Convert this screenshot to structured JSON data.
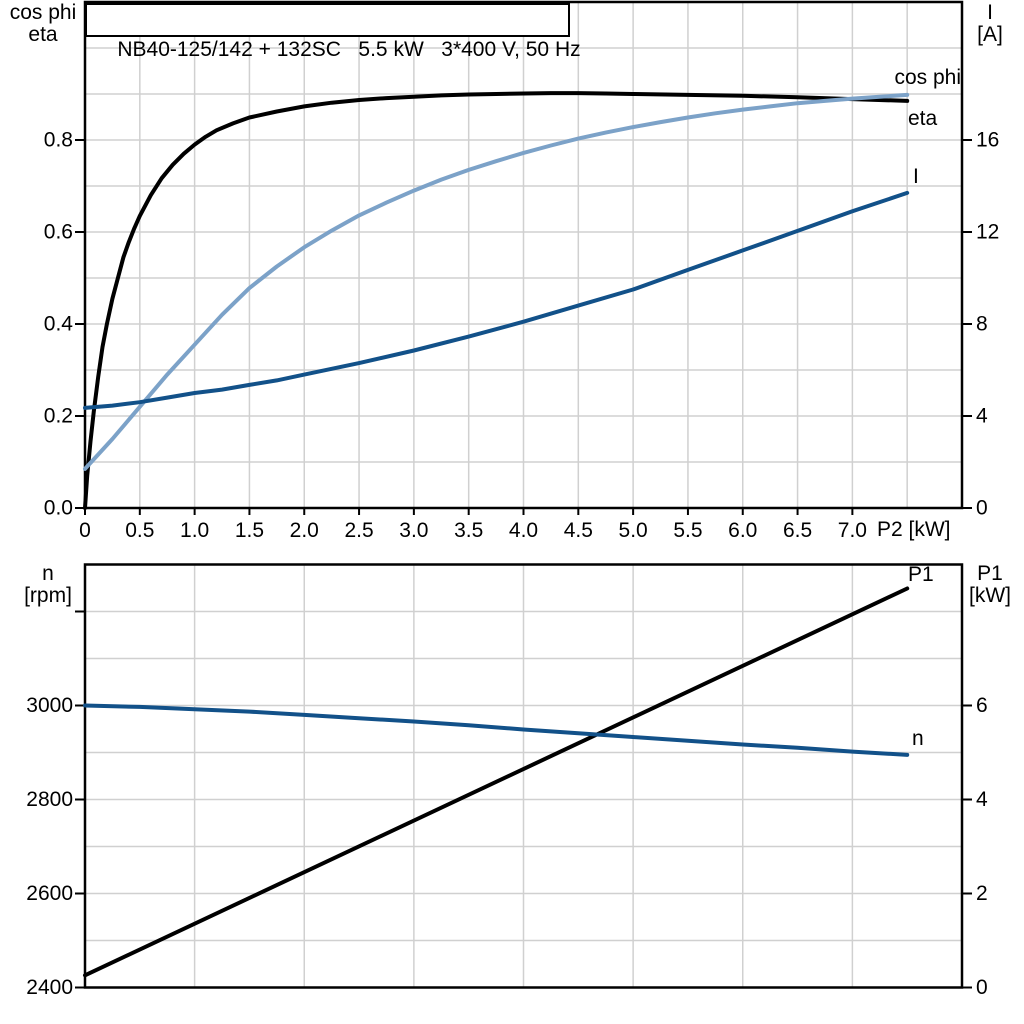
{
  "colors": {
    "curve_black": "#000000",
    "curve_dark_blue": "#125189",
    "curve_light_blue": "#7ca2c8",
    "grid": "#d0d0d0",
    "axis": "#000000"
  },
  "chart_data": [
    {
      "type": "line",
      "title": "NB40-125/142 + 132SC   5.5 kW   3*400 V, 50 Hz",
      "xlabel": "P2 [kW]",
      "xlim": [
        0,
        8
      ],
      "grid": "on",
      "x_axis": {
        "label": "P2 [kW]",
        "ticks": [
          {
            "v": 0,
            "label": "0"
          },
          {
            "v": 0.5,
            "label": "0.5"
          },
          {
            "v": 1,
            "label": "1.0"
          },
          {
            "v": 1.5,
            "label": "1.5"
          },
          {
            "v": 2,
            "label": "2.0"
          },
          {
            "v": 2.5,
            "label": "2.5"
          },
          {
            "v": 3,
            "label": "3.0"
          },
          {
            "v": 3.5,
            "label": "3.5"
          },
          {
            "v": 4,
            "label": "4.0"
          },
          {
            "v": 4.5,
            "label": "4.5"
          },
          {
            "v": 5,
            "label": "5.0"
          },
          {
            "v": 5.5,
            "label": "5.5"
          },
          {
            "v": 6,
            "label": "6.0"
          },
          {
            "v": 6.5,
            "label": "6.5"
          },
          {
            "v": 7,
            "label": "7.0"
          }
        ]
      },
      "left_axis": {
        "title_lines": [
          "cos phi",
          "eta"
        ],
        "min": 0,
        "max": 1.1,
        "ticks": [
          {
            "v": 0,
            "label": "0.0"
          },
          {
            "v": 0.2,
            "label": "0.2"
          },
          {
            "v": 0.4,
            "label": "0.4"
          },
          {
            "v": 0.6,
            "label": "0.6"
          },
          {
            "v": 0.8,
            "label": "0.8"
          }
        ]
      },
      "right_axis": {
        "title_lines": [
          "I",
          "[A]"
        ],
        "min": 0,
        "max": 22,
        "ticks": [
          {
            "v": 0,
            "label": "0"
          },
          {
            "v": 4,
            "label": "4"
          },
          {
            "v": 8,
            "label": "8"
          },
          {
            "v": 12,
            "label": "12"
          },
          {
            "v": 16,
            "label": "16"
          }
        ]
      },
      "series": [
        {
          "name": "eta",
          "axis": "left",
          "color": "#000000",
          "points": [
            [
              0,
              0
            ],
            [
              0.02,
              0.07
            ],
            [
              0.05,
              0.145
            ],
            [
              0.08,
              0.21
            ],
            [
              0.12,
              0.285
            ],
            [
              0.16,
              0.35
            ],
            [
              0.2,
              0.4
            ],
            [
              0.25,
              0.455
            ],
            [
              0.3,
              0.5
            ],
            [
              0.35,
              0.545
            ],
            [
              0.4,
              0.578
            ],
            [
              0.45,
              0.608
            ],
            [
              0.5,
              0.635
            ],
            [
              0.6,
              0.68
            ],
            [
              0.7,
              0.717
            ],
            [
              0.8,
              0.746
            ],
            [
              0.9,
              0.77
            ],
            [
              1.0,
              0.79
            ],
            [
              1.1,
              0.807
            ],
            [
              1.2,
              0.821
            ],
            [
              1.35,
              0.836
            ],
            [
              1.5,
              0.849
            ],
            [
              1.75,
              0.862
            ],
            [
              2.0,
              0.873
            ],
            [
              2.25,
              0.881
            ],
            [
              2.5,
              0.887
            ],
            [
              2.75,
              0.891
            ],
            [
              3.0,
              0.894
            ],
            [
              3.25,
              0.897
            ],
            [
              3.5,
              0.899
            ],
            [
              3.75,
              0.9
            ],
            [
              4.0,
              0.901
            ],
            [
              4.25,
              0.902
            ],
            [
              4.5,
              0.902
            ],
            [
              4.75,
              0.901
            ],
            [
              5.0,
              0.9
            ],
            [
              5.5,
              0.898
            ],
            [
              6.0,
              0.896
            ],
            [
              6.5,
              0.893
            ],
            [
              7.0,
              0.889
            ],
            [
              7.5,
              0.885
            ]
          ]
        },
        {
          "name": "cos phi",
          "axis": "left",
          "color": "#7ca2c8",
          "points": [
            [
              0,
              0.085
            ],
            [
              0.25,
              0.15
            ],
            [
              0.5,
              0.22
            ],
            [
              0.75,
              0.29
            ],
            [
              1.0,
              0.355
            ],
            [
              1.25,
              0.42
            ],
            [
              1.5,
              0.478
            ],
            [
              1.75,
              0.525
            ],
            [
              2.0,
              0.567
            ],
            [
              2.25,
              0.603
            ],
            [
              2.5,
              0.636
            ],
            [
              2.75,
              0.664
            ],
            [
              3.0,
              0.69
            ],
            [
              3.25,
              0.714
            ],
            [
              3.5,
              0.735
            ],
            [
              3.75,
              0.754
            ],
            [
              4.0,
              0.772
            ],
            [
              4.25,
              0.788
            ],
            [
              4.5,
              0.803
            ],
            [
              4.75,
              0.816
            ],
            [
              5.0,
              0.828
            ],
            [
              5.25,
              0.839
            ],
            [
              5.5,
              0.849
            ],
            [
              5.75,
              0.858
            ],
            [
              6.0,
              0.866
            ],
            [
              6.25,
              0.873
            ],
            [
              6.5,
              0.88
            ],
            [
              6.75,
              0.885
            ],
            [
              7.0,
              0.89
            ],
            [
              7.25,
              0.894
            ],
            [
              7.5,
              0.898
            ]
          ]
        },
        {
          "name": "I",
          "axis": "right",
          "color": "#125189",
          "points": [
            [
              0,
              4.35
            ],
            [
              0.25,
              4.45
            ],
            [
              0.5,
              4.6
            ],
            [
              0.75,
              4.8
            ],
            [
              1.0,
              5.0
            ],
            [
              1.25,
              5.15
            ],
            [
              1.5,
              5.35
            ],
            [
              1.75,
              5.55
            ],
            [
              2.0,
              5.8
            ],
            [
              2.5,
              6.3
            ],
            [
              3.0,
              6.85
            ],
            [
              3.5,
              7.45
            ],
            [
              4.0,
              8.1
            ],
            [
              4.5,
              8.8
            ],
            [
              5.0,
              9.5
            ],
            [
              5.5,
              10.35
            ],
            [
              6.0,
              11.2
            ],
            [
              6.5,
              12.05
            ],
            [
              7.0,
              12.9
            ],
            [
              7.5,
              13.7
            ]
          ]
        }
      ]
    },
    {
      "type": "line",
      "title": "",
      "xlabel": "",
      "xlim": [
        0,
        8
      ],
      "grid": "on",
      "x_axis": {
        "label": "",
        "ticks": []
      },
      "left_axis": {
        "title_lines": [
          "n",
          "[rpm]"
        ],
        "min": 2400,
        "max": 3300,
        "ticks": [
          {
            "v": 3200,
            "label": ""
          },
          {
            "v": 3000,
            "label": "3000"
          },
          {
            "v": 2800,
            "label": "2800"
          },
          {
            "v": 2600,
            "label": "2600"
          },
          {
            "v": 2400,
            "label": "2400"
          }
        ]
      },
      "right_axis": {
        "title_lines": [
          "P1",
          "[kW]"
        ],
        "min": 0,
        "max": 9,
        "ticks": [
          {
            "v": 6,
            "label": "6"
          },
          {
            "v": 4,
            "label": "4"
          },
          {
            "v": 2,
            "label": "2"
          },
          {
            "v": 0,
            "label": "0"
          }
        ]
      },
      "series": [
        {
          "name": "P1",
          "axis": "right",
          "color": "#000000",
          "points": [
            [
              0,
              0.26
            ],
            [
              7.5,
              8.49
            ]
          ]
        },
        {
          "name": "n",
          "axis": "left",
          "color": "#125189",
          "points": [
            [
              0,
              3000
            ],
            [
              0.5,
              2997
            ],
            [
              1.0,
              2992
            ],
            [
              1.5,
              2987
            ],
            [
              2.0,
              2980
            ],
            [
              2.5,
              2973
            ],
            [
              3.0,
              2966
            ],
            [
              3.5,
              2958
            ],
            [
              4.0,
              2949
            ],
            [
              4.5,
              2941
            ],
            [
              5.0,
              2933
            ],
            [
              5.5,
              2925
            ],
            [
              6.0,
              2917
            ],
            [
              6.5,
              2910
            ],
            [
              7.0,
              2902
            ],
            [
              7.5,
              2895
            ]
          ]
        }
      ]
    }
  ]
}
